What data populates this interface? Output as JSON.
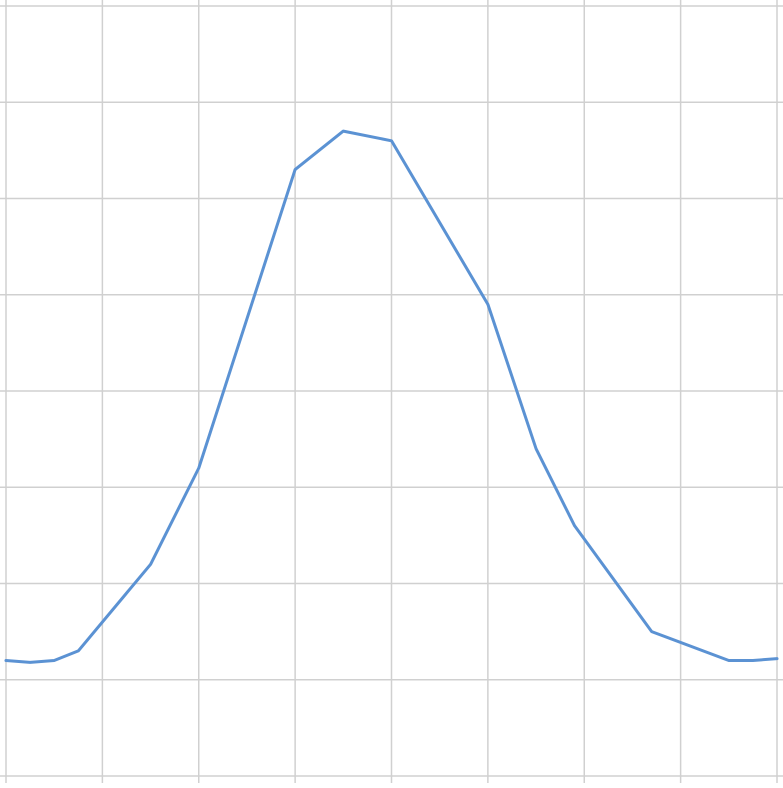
{
  "colors": {
    "background": "#ffffff",
    "grid": "#d0d0d0",
    "series": "#5b92d3"
  },
  "chart_data": {
    "type": "line",
    "title": "",
    "xlabel": "",
    "ylabel": "",
    "grid": true,
    "legend": "none",
    "xlim": [
      0,
      8
    ],
    "ylim": [
      0,
      8
    ],
    "x_gridlines": [
      0,
      1,
      2,
      3,
      4,
      5,
      6,
      7,
      8
    ],
    "y_gridlines": [
      0,
      1,
      2,
      3,
      4,
      5,
      6,
      7,
      8
    ],
    "series": [
      {
        "x": [
          0,
          0.25,
          0.5,
          0.75,
          1.5,
          2,
          3,
          3.5,
          4,
          5,
          5.5,
          5.9,
          6.7,
          7.5,
          7.75,
          8
        ],
        "y": [
          1.2,
          1.18,
          1.2,
          1.3,
          2.2,
          3.2,
          6.3,
          6.7,
          6.6,
          4.9,
          3.4,
          2.6,
          1.5,
          1.2,
          1.2,
          1.22
        ]
      }
    ]
  }
}
